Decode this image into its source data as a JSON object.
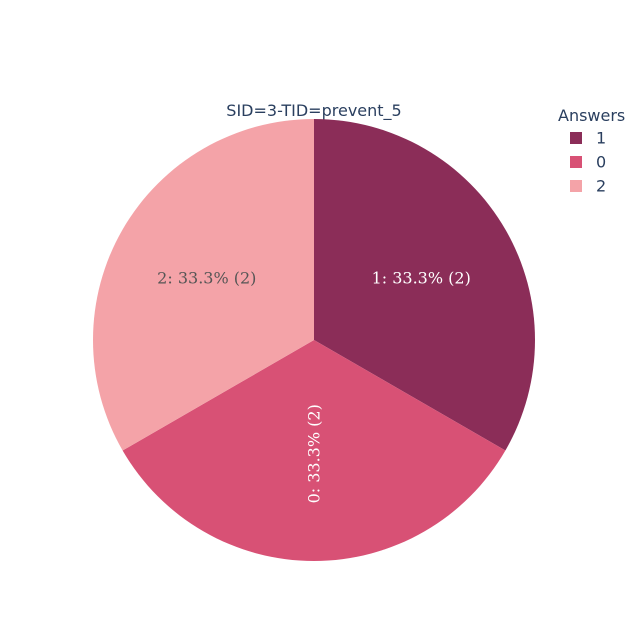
{
  "chart_data": {
    "type": "pie",
    "title": "SID=3-TID=prevent_5",
    "legend": {
      "title": "Answers",
      "placement": "top-right"
    },
    "slices": [
      {
        "label": "1",
        "value": 2,
        "percent": "33.3%",
        "text": "1: 33.3% (2)",
        "color": "#8b2d58",
        "text_color": "#ffffff"
      },
      {
        "label": "0",
        "value": 2,
        "percent": "33.3%",
        "text": "0: 33.3% (2)",
        "color": "#d85175",
        "text_color": "#ffffff"
      },
      {
        "label": "2",
        "value": 2,
        "percent": "33.3%",
        "text": "2: 33.3% (2)",
        "color": "#f4a3a8",
        "text_color": "#555555"
      }
    ],
    "direction": "clockwise",
    "start": "top"
  }
}
